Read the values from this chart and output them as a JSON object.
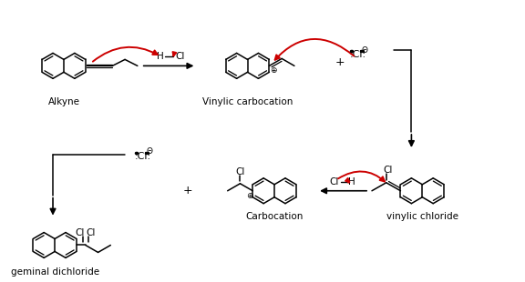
{
  "background_color": "#ffffff",
  "labels": {
    "alkyne": "Alkyne",
    "vinylic_carbocation": "Vinylic carbocation",
    "carbocation": "Carbocation",
    "vinylic_chloride": "vinylic chloride",
    "geminal_dichloride": "geminal dichloride"
  },
  "red": "#cc0000",
  "black": "#000000"
}
